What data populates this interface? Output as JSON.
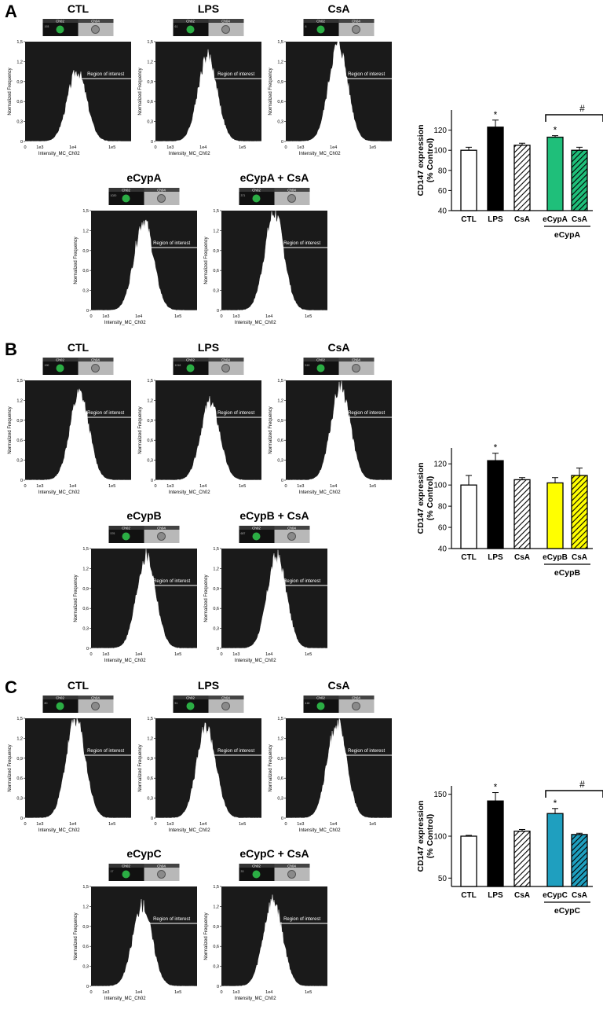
{
  "panels": [
    {
      "letter": "A",
      "histograms": [
        {
          "title": "CTL",
          "event": "193",
          "peak": 1.05
        },
        {
          "title": "LPS",
          "event": "61",
          "peak": 1.28
        },
        {
          "title": "CsA",
          "event": "6",
          "peak": 1.45
        },
        {
          "title": "eCypA",
          "event": "1020",
          "peak": 1.35
        },
        {
          "title": "eCypA + CsA",
          "event": "371",
          "peak": 1.46
        }
      ],
      "bar_chart": {
        "ylabel_line1": "CD147 expression",
        "ylabel_line2": "(% Control)",
        "group_label": "eCypA",
        "hash_label": "#",
        "star_label": "*"
      }
    },
    {
      "letter": "B",
      "histograms": [
        {
          "title": "CTL",
          "event": "190",
          "peak": 1.3
        },
        {
          "title": "LPS",
          "event": "1016",
          "peak": 1.16
        },
        {
          "title": "CsA",
          "event": "519",
          "peak": 1.4
        },
        {
          "title": "eCypB",
          "event": "576",
          "peak": 1.38
        },
        {
          "title": "eCypB + CsA",
          "event": "687",
          "peak": 1.38
        }
      ],
      "bar_chart": {
        "ylabel_line1": "CD147 expression",
        "ylabel_line2": "(% Control)",
        "group_label": "eCypB",
        "star_label": "*"
      }
    },
    {
      "letter": "C",
      "histograms": [
        {
          "title": "CTL",
          "event": "80",
          "peak": 1.48
        },
        {
          "title": "LPS",
          "event": "51",
          "peak": 1.36
        },
        {
          "title": "CsA",
          "event": "418",
          "peak": 1.43
        },
        {
          "title": "eCypC",
          "event": "17",
          "peak": 1.22
        },
        {
          "title": "eCypC + CsA",
          "event": "33",
          "peak": 1.27
        }
      ],
      "bar_chart": {
        "ylabel_line1": "CD147 expression",
        "ylabel_line2": "(% Control)",
        "group_label": "eCypC",
        "hash_label": "#",
        "star_label": "*"
      }
    }
  ],
  "histogram_text": {
    "ylabel": "Normalized Frequency",
    "xlabel": "Intensity_MC_Ch02",
    "region_label": "Region of interest",
    "ch02": "Ch02",
    "ch04": "Ch04",
    "yticks": [
      "0",
      "0,3",
      "0,6",
      "0,9",
      "1,2",
      "1,5"
    ],
    "xticks": [
      "0",
      "1e3",
      "1e4",
      "1e5"
    ]
  },
  "colors": {
    "histogram_bg": "#1a1a1a",
    "histogram_fill": "#ffffff",
    "green_cell": "#2fbf4a",
    "ctl_bar": "#ffffff",
    "lps_bar": "#000000",
    "cypA": "#1fbf7a",
    "cypB": "#ffff00",
    "cypC": "#1f9fbf"
  },
  "chart_data": [
    {
      "type": "bar",
      "panel": "A",
      "categories": [
        "CTL",
        "LPS",
        "CsA",
        "eCypA",
        "CsA"
      ],
      "values": [
        100,
        123,
        105,
        113,
        100
      ],
      "errors": [
        3,
        7,
        2,
        1.5,
        3
      ],
      "significance": [
        "",
        "*",
        "",
        "*",
        ""
      ],
      "ylabel": "CD147 expression (% Control)",
      "ylim": [
        40,
        140
      ],
      "yticks": [
        40,
        60,
        80,
        100,
        120
      ],
      "bar_fills": [
        "white",
        "black",
        "hatch-white",
        "#1fbf7a",
        "hatch-#1fbf7a"
      ]
    },
    {
      "type": "bar",
      "panel": "B",
      "categories": [
        "CTL",
        "LPS",
        "CsA",
        "eCypB",
        "CsA"
      ],
      "values": [
        100,
        123,
        105,
        102,
        109
      ],
      "errors": [
        9,
        7,
        2,
        5,
        7
      ],
      "significance": [
        "",
        "*",
        "",
        "",
        ""
      ],
      "ylabel": "CD147 expression (% Control)",
      "ylim": [
        40,
        135
      ],
      "yticks": [
        40,
        60,
        80,
        100,
        120
      ],
      "bar_fills": [
        "white",
        "black",
        "hatch-white",
        "#ffff00",
        "hatch-#ffff00"
      ]
    },
    {
      "type": "bar",
      "panel": "C",
      "categories": [
        "CTL",
        "LPS",
        "CsA",
        "eCypC",
        "CsA"
      ],
      "values": [
        100,
        142,
        106,
        127,
        102
      ],
      "errors": [
        1,
        10,
        2,
        6,
        1.5
      ],
      "significance": [
        "",
        "*",
        "",
        "*",
        ""
      ],
      "ylabel": "CD147 expression (% Control)",
      "ylim": [
        40,
        160
      ],
      "yticks": [
        50,
        100,
        150
      ],
      "bar_fills": [
        "white",
        "black",
        "hatch-white",
        "#1f9fbf",
        "hatch-#1f9fbf"
      ]
    }
  ]
}
